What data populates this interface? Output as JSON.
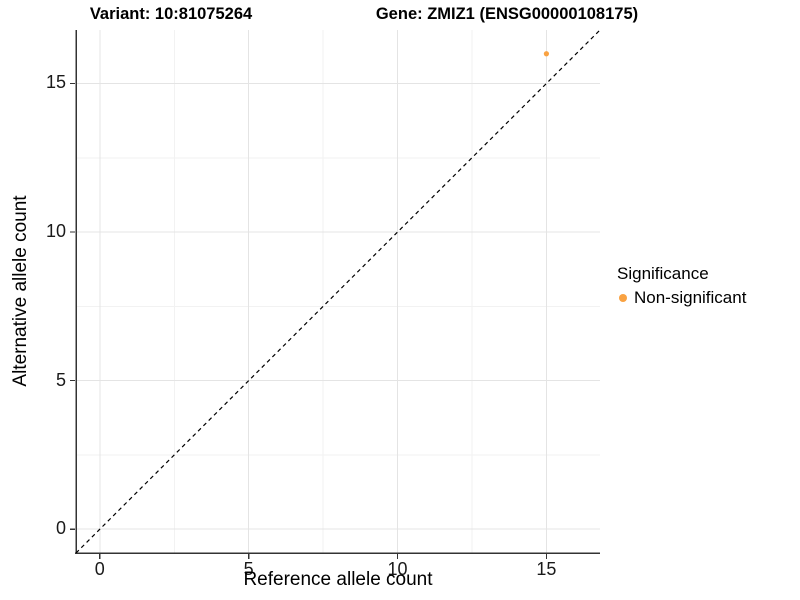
{
  "titles": {
    "variant": "Variant: 10:81075264",
    "gene": "Gene: ZMIZ1 (ENSG00000108175)"
  },
  "legend": {
    "title": "Significance",
    "items": [
      {
        "label": "Non-significant",
        "color": "#F9A242"
      }
    ]
  },
  "colors": {
    "background": "#FFFFFF",
    "axis_line": "#333333",
    "grid_major": "#E4E4E4",
    "grid_minor": "#F2F2F2",
    "tick_text": "#1A1A1A",
    "dashed_line": "#000000",
    "point_orange": "#F9A242"
  },
  "chart_data": {
    "type": "scatter",
    "title": "Variant: 10:81075264 | Gene: ZMIZ1 (ENSG00000108175)",
    "xlabel": "Reference allele count",
    "ylabel": "Alternative allele count",
    "xlim": [
      -0.8,
      16.8
    ],
    "ylim": [
      -0.8,
      16.8
    ],
    "x_ticks": [
      0,
      5,
      10,
      15
    ],
    "y_ticks": [
      0,
      5,
      10,
      15
    ],
    "x_minor_ticks": [
      2.5,
      7.5,
      12.5
    ],
    "y_minor_ticks": [
      2.5,
      7.5,
      12.5
    ],
    "grid": "major and minor gridlines, light gray on white",
    "legend_position": "right",
    "series": [
      {
        "name": "Non-significant",
        "color": "#F9A242",
        "points": [
          {
            "x": 15,
            "y": 16
          }
        ]
      }
    ],
    "reference_line": {
      "type": "identity y=x",
      "style": "dashed",
      "color": "#000000",
      "from": [
        -0.8,
        -0.8
      ],
      "to": [
        16.8,
        16.8
      ]
    }
  }
}
